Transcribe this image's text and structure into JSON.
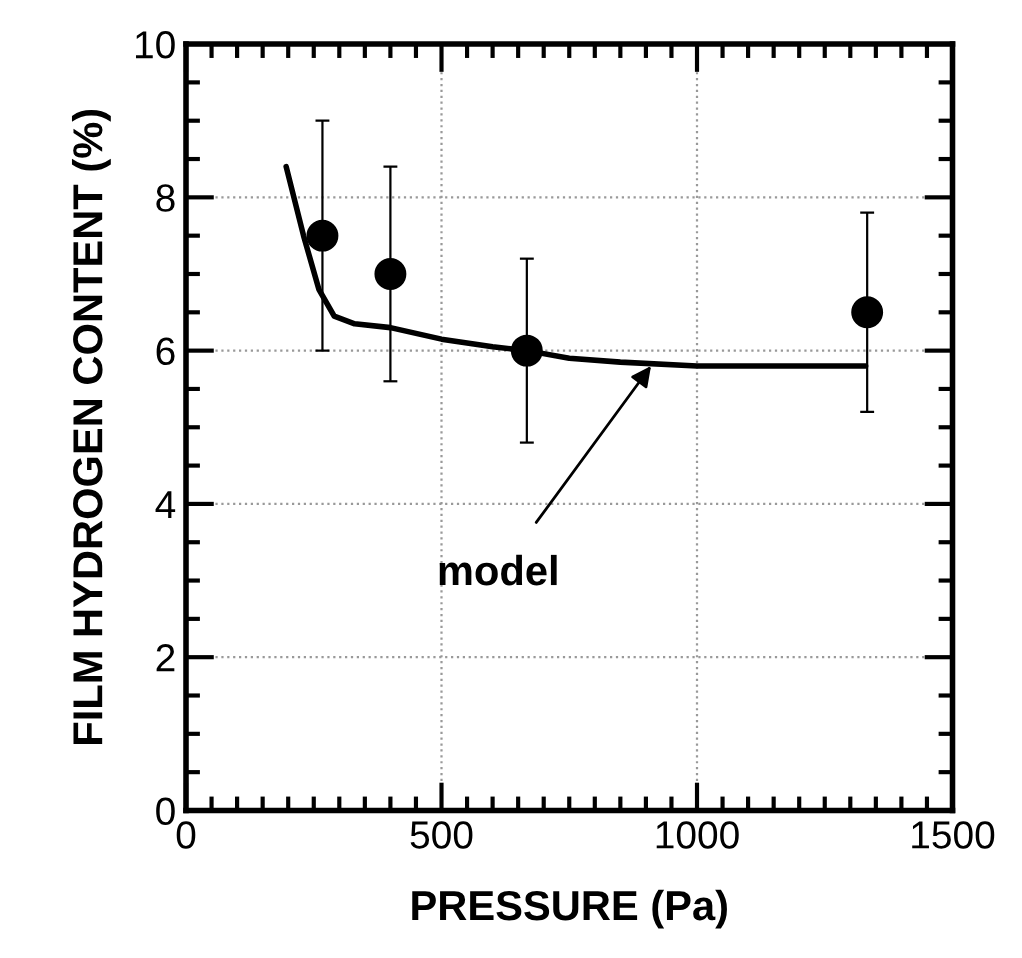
{
  "chart_data": {
    "type": "scatter",
    "xlabel": "PRESSURE (Pa)",
    "ylabel": "FILM HYDROGEN CONTENT (%)",
    "xlim": [
      0,
      1500
    ],
    "xticks": [
      0,
      500,
      1000,
      1500
    ],
    "ylim": [
      0,
      10
    ],
    "yticks": [
      0,
      2,
      4,
      6,
      8,
      10
    ],
    "grid": true,
    "series": [
      {
        "marker": "circle",
        "color": "#000000",
        "x": [
          267,
          400,
          667,
          1333
        ],
        "values": [
          7.5,
          7.0,
          6.0,
          6.5
        ],
        "errors": [
          [
            6.0,
            9.0
          ],
          [
            5.6,
            8.4
          ],
          [
            4.8,
            7.2
          ],
          [
            5.2,
            7.8
          ]
        ]
      },
      {
        "type": "line",
        "marker": "none",
        "color": "#000000",
        "x": [
          196,
          230,
          260,
          290,
          330,
          400,
          500,
          600,
          667,
          750,
          850,
          1000,
          1330
        ],
        "values": [
          8.4,
          7.5,
          6.8,
          6.45,
          6.35,
          6.3,
          6.15,
          6.05,
          6.0,
          5.9,
          5.85,
          5.8,
          5.8
        ]
      }
    ],
    "annotations": [
      {
        "text": "model",
        "x": 910,
        "y": 5.8
      }
    ]
  }
}
